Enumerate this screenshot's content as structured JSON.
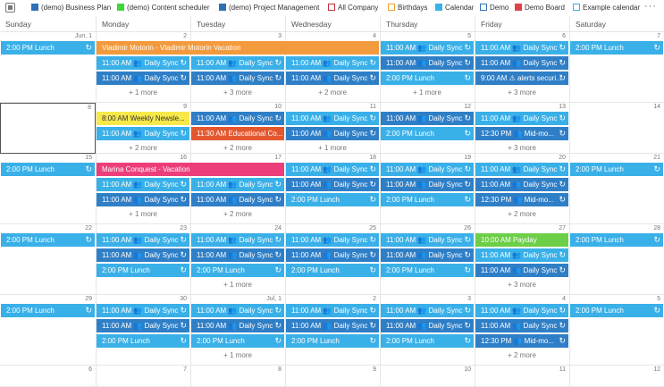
{
  "legend": {
    "items": [
      {
        "label": "(demo) Business Plan",
        "color": "#2f6fb5",
        "style": "filled"
      },
      {
        "label": "(demo) Content scheduler",
        "color": "#3fd63a",
        "style": "filled"
      },
      {
        "label": "(demo) Project Management",
        "color": "#2f6fb5",
        "style": "filled"
      },
      {
        "label": "All Company",
        "color": "#c4303b",
        "style": "outline"
      },
      {
        "label": "Birthdays",
        "color": "#f0a030",
        "style": "outline"
      },
      {
        "label": "Calendar",
        "color": "#3ab0e8",
        "style": "filled"
      },
      {
        "label": "Demo",
        "color": "#2f6fb5",
        "style": "outline"
      },
      {
        "label": "Demo Board",
        "color": "#e0404a",
        "style": "filled"
      },
      {
        "label": "Example calendar",
        "color": "#3ab0e8",
        "style": "outline"
      }
    ],
    "more": "···"
  },
  "days": [
    "Sunday",
    "Monday",
    "Tuesday",
    "Wednesday",
    "Thursday",
    "Friday",
    "Saturday"
  ],
  "weeks": [
    {
      "dates": [
        "Jun, 1",
        "2",
        "3",
        "4",
        "5",
        "6",
        "7"
      ],
      "events": [
        {
          "col": 0,
          "span": 1,
          "row": 0,
          "text": "2:00 PM Lunch",
          "color": "cal",
          "sync": true
        },
        {
          "col": 1,
          "span": 3,
          "row": 0,
          "text": "Vladimir Motorin - Vladimir Motorin Vacation",
          "color": "orange",
          "sync": false
        },
        {
          "col": 4,
          "span": 1,
          "row": 0,
          "text": "11:00 AM 👥 Daily Sync",
          "color": "cal",
          "sync": true
        },
        {
          "col": 5,
          "span": 1,
          "row": 0,
          "text": "11:00 AM 👥 Daily Sync",
          "color": "cal",
          "sync": true
        },
        {
          "col": 6,
          "span": 1,
          "row": 0,
          "text": "2:00 PM Lunch",
          "color": "cal",
          "sync": true
        },
        {
          "col": 1,
          "span": 1,
          "row": 1,
          "text": "11:00 AM 👥 Daily Sync",
          "color": "cal",
          "sync": true
        },
        {
          "col": 2,
          "span": 1,
          "row": 1,
          "text": "11:00 AM 👥 Daily Sync",
          "color": "cal",
          "sync": true
        },
        {
          "col": 3,
          "span": 1,
          "row": 1,
          "text": "11:00 AM 👥 Daily Sync",
          "color": "cal",
          "sync": true
        },
        {
          "col": 4,
          "span": 1,
          "row": 1,
          "text": "11:00 AM 👥 Daily Sync",
          "color": "demo",
          "sync": true
        },
        {
          "col": 5,
          "span": 1,
          "row": 1,
          "text": "11:00 AM 👥 Daily Sync",
          "color": "demo",
          "sync": true
        },
        {
          "col": 1,
          "span": 1,
          "row": 2,
          "text": "11:00 AM 👥 Daily Sync",
          "color": "demo",
          "sync": true
        },
        {
          "col": 2,
          "span": 1,
          "row": 2,
          "text": "11:00 AM 👥 Daily Sync",
          "color": "demo",
          "sync": true
        },
        {
          "col": 3,
          "span": 1,
          "row": 2,
          "text": "11:00 AM 👥 Daily Sync",
          "color": "demo",
          "sync": true
        },
        {
          "col": 4,
          "span": 1,
          "row": 2,
          "text": "2:00 PM Lunch",
          "color": "cal",
          "sync": true
        },
        {
          "col": 5,
          "span": 1,
          "row": 2,
          "text": "9:00 AM ⚠ alerts securi...",
          "color": "demo",
          "sync": true
        }
      ],
      "more": [
        {
          "col": 1,
          "text": "+ 1 more"
        },
        {
          "col": 2,
          "text": "+ 3 more"
        },
        {
          "col": 3,
          "text": "+ 2 more"
        },
        {
          "col": 4,
          "text": "+ 1 more"
        },
        {
          "col": 5,
          "text": "+ 3 more"
        }
      ]
    },
    {
      "dates": [
        "8",
        "9",
        "10",
        "11",
        "12",
        "13",
        "14"
      ],
      "selected_col": 0,
      "events": [
        {
          "col": 1,
          "span": 1,
          "row": 0,
          "text": "8:00 AM Weekly Newsle...",
          "color": "yellow",
          "sync": false
        },
        {
          "col": 2,
          "span": 1,
          "row": 0,
          "text": "11:00 AM 👥 Daily Sync",
          "color": "demo",
          "sync": true
        },
        {
          "col": 3,
          "span": 1,
          "row": 0,
          "text": "11:00 AM 👥 Daily Sync",
          "color": "cal",
          "sync": true
        },
        {
          "col": 4,
          "span": 1,
          "row": 0,
          "text": "11:00 AM 👥 Daily Sync",
          "color": "demo",
          "sync": true
        },
        {
          "col": 5,
          "span": 1,
          "row": 0,
          "text": "11:00 AM 👥 Daily Sync",
          "color": "cal",
          "sync": true
        },
        {
          "col": 1,
          "span": 1,
          "row": 1,
          "text": "11:00 AM 👥 Daily Sync",
          "color": "cal",
          "sync": true
        },
        {
          "col": 2,
          "span": 1,
          "row": 1,
          "text": "11:30 AM Educational Co...",
          "color": "red",
          "sync": false
        },
        {
          "col": 3,
          "span": 1,
          "row": 1,
          "text": "11:00 AM 👥 Daily Sync",
          "color": "demo",
          "sync": true
        },
        {
          "col": 4,
          "span": 1,
          "row": 1,
          "text": "2:00 PM Lunch",
          "color": "cal",
          "sync": true
        },
        {
          "col": 5,
          "span": 1,
          "row": 1,
          "text": "12:30 PM 👥 Mid-mo...",
          "color": "demo",
          "sync": true
        }
      ],
      "more": [
        {
          "col": 1,
          "text": "+ 2 more"
        },
        {
          "col": 2,
          "text": "+ 2 more"
        },
        {
          "col": 3,
          "text": "+ 1 more"
        },
        {
          "col": 5,
          "text": "+ 3 more"
        }
      ]
    },
    {
      "dates": [
        "15",
        "16",
        "17",
        "18",
        "19",
        "20",
        "21"
      ],
      "events": [
        {
          "col": 0,
          "span": 1,
          "row": 0,
          "text": "2:00 PM Lunch",
          "color": "cal",
          "sync": true
        },
        {
          "col": 1,
          "span": 2,
          "row": 0,
          "text": "Marina Conquest - Vacation",
          "color": "pink",
          "sync": false
        },
        {
          "col": 3,
          "span": 1,
          "row": 0,
          "text": "11:00 AM 👥 Daily Sync",
          "color": "cal",
          "sync": true
        },
        {
          "col": 4,
          "span": 1,
          "row": 0,
          "text": "11:00 AM 👥 Daily Sync",
          "color": "cal",
          "sync": true
        },
        {
          "col": 5,
          "span": 1,
          "row": 0,
          "text": "11:00 AM 👥 Daily Sync",
          "color": "cal",
          "sync": true
        },
        {
          "col": 6,
          "span": 1,
          "row": 0,
          "text": "2:00 PM Lunch",
          "color": "cal",
          "sync": true
        },
        {
          "col": 1,
          "span": 1,
          "row": 1,
          "text": "11:00 AM 👥 Daily Sync",
          "color": "cal",
          "sync": true
        },
        {
          "col": 2,
          "span": 1,
          "row": 1,
          "text": "11:00 AM 👥 Daily Sync",
          "color": "cal",
          "sync": true
        },
        {
          "col": 3,
          "span": 1,
          "row": 1,
          "text": "11:00 AM 👥 Daily Sync",
          "color": "demo",
          "sync": true
        },
        {
          "col": 4,
          "span": 1,
          "row": 1,
          "text": "11:00 AM 👥 Daily Sync",
          "color": "demo",
          "sync": true
        },
        {
          "col": 5,
          "span": 1,
          "row": 1,
          "text": "11:00 AM 👥 Daily Sync",
          "color": "demo",
          "sync": true
        },
        {
          "col": 1,
          "span": 1,
          "row": 2,
          "text": "11:00 AM 👥 Daily Sync",
          "color": "demo",
          "sync": true
        },
        {
          "col": 2,
          "span": 1,
          "row": 2,
          "text": "11:00 AM 👥 Daily Sync",
          "color": "demo",
          "sync": true
        },
        {
          "col": 3,
          "span": 1,
          "row": 2,
          "text": "2:00 PM Lunch",
          "color": "cal",
          "sync": true
        },
        {
          "col": 4,
          "span": 1,
          "row": 2,
          "text": "2:00 PM Lunch",
          "color": "cal",
          "sync": true
        },
        {
          "col": 5,
          "span": 1,
          "row": 2,
          "text": "12:30 PM 👥 Mid-mo...",
          "color": "demo",
          "sync": true
        }
      ],
      "more": [
        {
          "col": 1,
          "text": "+ 1 more"
        },
        {
          "col": 2,
          "text": "+ 2 more"
        },
        {
          "col": 5,
          "text": "+ 2 more"
        }
      ]
    },
    {
      "dates": [
        "22",
        "23",
        "24",
        "25",
        "26",
        "27",
        "28"
      ],
      "events": [
        {
          "col": 0,
          "span": 1,
          "row": 0,
          "text": "2:00 PM Lunch",
          "color": "cal",
          "sync": true
        },
        {
          "col": 1,
          "span": 1,
          "row": 0,
          "text": "11:00 AM 👥 Daily Sync",
          "color": "cal",
          "sync": true
        },
        {
          "col": 2,
          "span": 1,
          "row": 0,
          "text": "11:00 AM 👥 Daily Sync",
          "color": "cal",
          "sync": true
        },
        {
          "col": 3,
          "span": 1,
          "row": 0,
          "text": "11:00 AM 👥 Daily Sync",
          "color": "cal",
          "sync": true
        },
        {
          "col": 4,
          "span": 1,
          "row": 0,
          "text": "11:00 AM 👥 Daily Sync",
          "color": "cal",
          "sync": true
        },
        {
          "col": 5,
          "span": 1,
          "row": 0,
          "text": "10:00 AM Payday",
          "color": "green",
          "sync": false
        },
        {
          "col": 6,
          "span": 1,
          "row": 0,
          "text": "2:00 PM Lunch",
          "color": "cal",
          "sync": true
        },
        {
          "col": 1,
          "span": 1,
          "row": 1,
          "text": "11:00 AM 👥 Daily Sync",
          "color": "demo",
          "sync": true
        },
        {
          "col": 2,
          "span": 1,
          "row": 1,
          "text": "11:00 AM 👥 Daily Sync",
          "color": "demo",
          "sync": true
        },
        {
          "col": 3,
          "span": 1,
          "row": 1,
          "text": "11:00 AM 👥 Daily Sync",
          "color": "demo",
          "sync": true
        },
        {
          "col": 4,
          "span": 1,
          "row": 1,
          "text": "11:00 AM 👥 Daily Sync",
          "color": "demo",
          "sync": true
        },
        {
          "col": 5,
          "span": 1,
          "row": 1,
          "text": "11:00 AM 👥 Daily Sync",
          "color": "cal",
          "sync": true
        },
        {
          "col": 1,
          "span": 1,
          "row": 2,
          "text": "2:00 PM Lunch",
          "color": "cal",
          "sync": true
        },
        {
          "col": 2,
          "span": 1,
          "row": 2,
          "text": "2:00 PM Lunch",
          "color": "cal",
          "sync": true
        },
        {
          "col": 3,
          "span": 1,
          "row": 2,
          "text": "2:00 PM Lunch",
          "color": "cal",
          "sync": true
        },
        {
          "col": 4,
          "span": 1,
          "row": 2,
          "text": "2:00 PM Lunch",
          "color": "cal",
          "sync": true
        },
        {
          "col": 5,
          "span": 1,
          "row": 2,
          "text": "11:00 AM 👥 Daily Sync",
          "color": "demo",
          "sync": true
        }
      ],
      "more": [
        {
          "col": 2,
          "text": "+ 1 more"
        },
        {
          "col": 5,
          "text": "+ 3 more"
        }
      ]
    },
    {
      "dates": [
        "29",
        "30",
        "Jul, 1",
        "2",
        "3",
        "4",
        "5"
      ],
      "events": [
        {
          "col": 0,
          "span": 1,
          "row": 0,
          "text": "2:00 PM Lunch",
          "color": "cal",
          "sync": true
        },
        {
          "col": 1,
          "span": 1,
          "row": 0,
          "text": "11:00 AM 👥 Daily Sync",
          "color": "cal",
          "sync": true
        },
        {
          "col": 2,
          "span": 1,
          "row": 0,
          "text": "11:00 AM 👥 Daily Sync",
          "color": "cal",
          "sync": true
        },
        {
          "col": 3,
          "span": 1,
          "row": 0,
          "text": "11:00 AM 👥 Daily Sync",
          "color": "cal",
          "sync": true
        },
        {
          "col": 4,
          "span": 1,
          "row": 0,
          "text": "11:00 AM 👥 Daily Sync",
          "color": "cal",
          "sync": true
        },
        {
          "col": 5,
          "span": 1,
          "row": 0,
          "text": "11:00 AM 👥 Daily Sync",
          "color": "cal",
          "sync": true
        },
        {
          "col": 6,
          "span": 1,
          "row": 0,
          "text": "2:00 PM Lunch",
          "color": "cal",
          "sync": true
        },
        {
          "col": 1,
          "span": 1,
          "row": 1,
          "text": "11:00 AM 👥 Daily Sync",
          "color": "demo",
          "sync": true
        },
        {
          "col": 2,
          "span": 1,
          "row": 1,
          "text": "11:00 AM 👥 Daily Sync",
          "color": "demo",
          "sync": true
        },
        {
          "col": 3,
          "span": 1,
          "row": 1,
          "text": "11:00 AM 👥 Daily Sync",
          "color": "demo",
          "sync": true
        },
        {
          "col": 4,
          "span": 1,
          "row": 1,
          "text": "11:00 AM 👥 Daily Sync",
          "color": "demo",
          "sync": true
        },
        {
          "col": 5,
          "span": 1,
          "row": 1,
          "text": "11:00 AM 👥 Daily Sync",
          "color": "demo",
          "sync": true
        },
        {
          "col": 1,
          "span": 1,
          "row": 2,
          "text": "2:00 PM Lunch",
          "color": "cal",
          "sync": true
        },
        {
          "col": 2,
          "span": 1,
          "row": 2,
          "text": "2:00 PM Lunch",
          "color": "cal",
          "sync": true
        },
        {
          "col": 3,
          "span": 1,
          "row": 2,
          "text": "2:00 PM Lunch",
          "color": "cal",
          "sync": true
        },
        {
          "col": 4,
          "span": 1,
          "row": 2,
          "text": "2:00 PM Lunch",
          "color": "cal",
          "sync": true
        },
        {
          "col": 5,
          "span": 1,
          "row": 2,
          "text": "12:30 PM 👥 Mid-mo...",
          "color": "demo",
          "sync": true
        }
      ],
      "more": [
        {
          "col": 2,
          "text": "+ 1 more"
        },
        {
          "col": 5,
          "text": "+ 2 more"
        }
      ]
    },
    {
      "dates": [
        "6",
        "7",
        "8",
        "9",
        "10",
        "11",
        "12"
      ],
      "events": [],
      "more": []
    }
  ],
  "sync_icon": "sync-icon"
}
